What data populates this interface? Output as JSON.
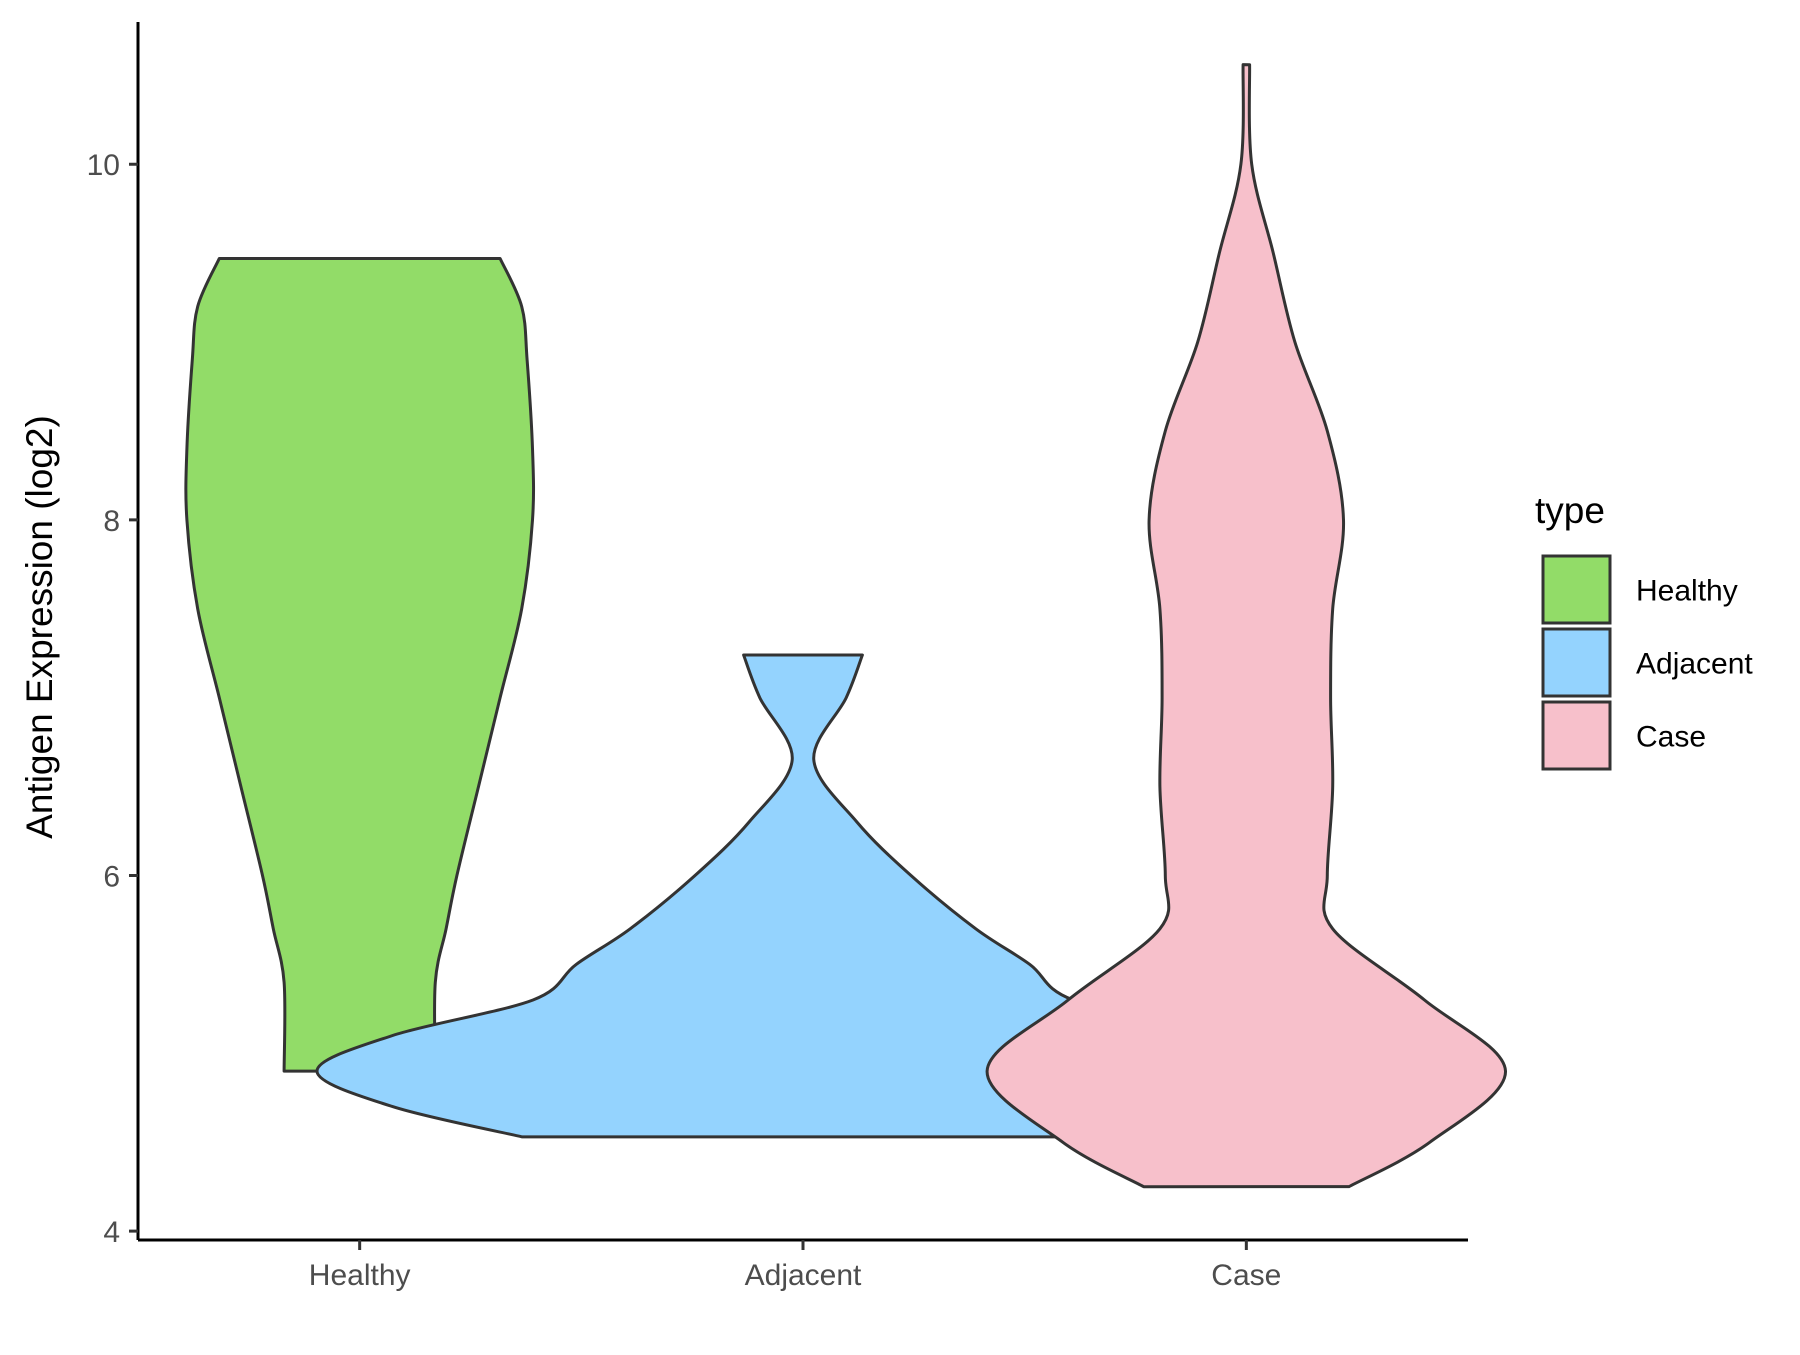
{
  "chart_data": {
    "type": "violin",
    "title": "",
    "xlabel": "",
    "ylabel": "Antigen Expression (log2)",
    "ylim": [
      3.95,
      10.8
    ],
    "yticks": [
      4,
      6,
      8,
      10
    ],
    "grid": false,
    "legend": {
      "title": "type",
      "position": "right"
    },
    "categories": [
      "Healthy",
      "Adjacent",
      "Case"
    ],
    "series": [
      {
        "name": "Healthy",
        "color": "#92dc68",
        "range": [
          4.9,
          9.47
        ],
        "density": [
          [
            4.9,
            0.07
          ],
          [
            5.4,
            0.07
          ],
          [
            5.7,
            0.08
          ],
          [
            6.0,
            0.09
          ],
          [
            6.5,
            0.11
          ],
          [
            7.0,
            0.13
          ],
          [
            7.5,
            0.15
          ],
          [
            8.0,
            0.16
          ],
          [
            8.4,
            0.16
          ],
          [
            8.9,
            0.155
          ],
          [
            9.2,
            0.15
          ],
          [
            9.47,
            0.13
          ]
        ]
      },
      {
        "name": "Adjacent",
        "color": "#94d3fe",
        "range": [
          4.53,
          7.24
        ],
        "density": [
          [
            4.53,
            0.26
          ],
          [
            4.7,
            0.38
          ],
          [
            4.9,
            0.45
          ],
          [
            5.1,
            0.38
          ],
          [
            5.3,
            0.25
          ],
          [
            5.5,
            0.21
          ],
          [
            5.7,
            0.16
          ],
          [
            6.0,
            0.1
          ],
          [
            6.3,
            0.05
          ],
          [
            6.65,
            0.01
          ],
          [
            7.0,
            0.04
          ],
          [
            7.24,
            0.055
          ]
        ]
      },
      {
        "name": "Case",
        "color": "#f7c0cb",
        "range": [
          4.25,
          10.56
        ],
        "density": [
          [
            4.25,
            0.095
          ],
          [
            4.5,
            0.17
          ],
          [
            4.9,
            0.24
          ],
          [
            5.3,
            0.165
          ],
          [
            5.7,
            0.08
          ],
          [
            6.0,
            0.075
          ],
          [
            6.5,
            0.08
          ],
          [
            7.0,
            0.078
          ],
          [
            7.5,
            0.08
          ],
          [
            8.0,
            0.09
          ],
          [
            8.5,
            0.075
          ],
          [
            9.0,
            0.045
          ],
          [
            9.5,
            0.025
          ],
          [
            10.0,
            0.005
          ],
          [
            10.56,
            0.003
          ]
        ]
      }
    ]
  }
}
